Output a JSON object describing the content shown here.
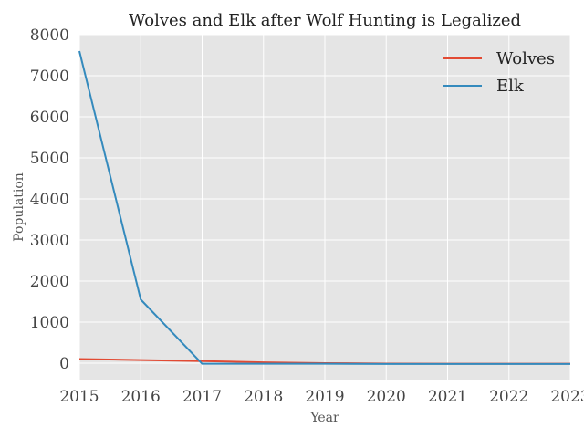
{
  "chart_data": {
    "type": "line",
    "title": "Wolves and Elk after Wolf Hunting is Legalized",
    "xlabel": "Year",
    "ylabel": "Population",
    "xlim": [
      2015,
      2023
    ],
    "ylim": [
      -400,
      8000
    ],
    "x": [
      2015,
      2016,
      2017,
      2018,
      2019,
      2020,
      2021,
      2022,
      2023
    ],
    "xticks": [
      "2015",
      "2016",
      "2017",
      "2018",
      "2019",
      "2020",
      "2021",
      "2022",
      "2023"
    ],
    "yticks": [
      "0",
      "1000",
      "2000",
      "3000",
      "4000",
      "5000",
      "6000",
      "7000",
      "8000"
    ],
    "grid": true,
    "legend_position": "top-right",
    "series": [
      {
        "name": "Wolves",
        "color": "#e24a33",
        "values": [
          100,
          75,
          50,
          20,
          0,
          -10,
          -15,
          -15,
          -15
        ]
      },
      {
        "name": "Elk",
        "color": "#348abd",
        "values": [
          7600,
          1550,
          -15,
          -15,
          -15,
          -20,
          -20,
          -20,
          -20
        ]
      }
    ]
  }
}
